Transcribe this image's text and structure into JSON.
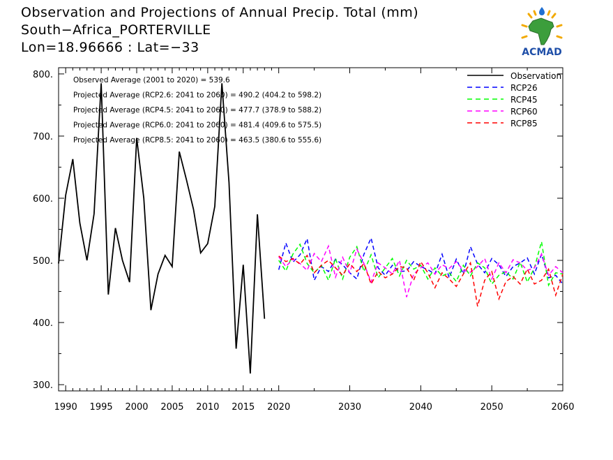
{
  "header": {
    "title_line1": "Observation and Projections of Annual Precip. Total (mm)",
    "title_line2": "South−Africa_PORTERVILLE",
    "title_line3": "Lon=18.96666 : Lat=−33"
  },
  "logo": {
    "text": "ACMAD",
    "icon": "africa-map-sun-icon"
  },
  "chart_data": {
    "type": "line",
    "title": "Observation and Projections of Annual Precip. Total (mm)",
    "xlim": [
      1989,
      2060
    ],
    "ylim": [
      290,
      810
    ],
    "x_ticks": [
      1990,
      1995,
      2000,
      2005,
      2010,
      2015,
      2020,
      2030,
      2040,
      2050,
      2060
    ],
    "y_ticks": [
      300,
      400,
      500,
      600,
      700,
      800
    ],
    "y_tick_labels": [
      "300.",
      "400.",
      "500.",
      "600.",
      "700.",
      "800."
    ],
    "grid": false,
    "legend_position": "top-right",
    "annotations": [
      "Observed Average (2001 to 2020) = 539.6",
      "Projected Average (RCP2.6: 2041 to 2060) = 490.2 (404.2 to 598.2)",
      "Projected Average (RCP4.5: 2041 to 2060) = 477.7 (378.9 to 588.2)",
      "Projected Average (RCP6.0: 2041 to 2060) = 481.4 (409.6 to 575.5)",
      "Projected Average (RCP8.5: 2041 to 2060) = 463.5 (380.6 to 555.6)"
    ],
    "series": [
      {
        "name": "Observation",
        "color": "#000000",
        "dash": "solid",
        "x": [
          1989,
          1990,
          1991,
          1992,
          1993,
          1994,
          1995,
          1996,
          1997,
          1998,
          1999,
          2000,
          2001,
          2002,
          2003,
          2004,
          2005,
          2006,
          2007,
          2008,
          2009,
          2010,
          2011,
          2012,
          2013,
          2014,
          2015,
          2016,
          2017,
          2018,
          2019,
          2020
        ],
        "values": [
          495,
          605,
          663,
          560,
          500,
          575,
          785,
          445,
          552,
          500,
          465,
          697,
          600,
          420,
          478,
          508,
          490,
          675,
          630,
          582,
          512,
          527,
          587,
          785,
          625,
          358,
          493,
          318,
          574,
          406,
          null,
          null
        ]
      },
      {
        "name": "RCP26",
        "color": "#0000ff",
        "dash": "dashed",
        "x": [
          2020,
          2021,
          2022,
          2023,
          2024,
          2025,
          2026,
          2027,
          2028,
          2029,
          2030,
          2031,
          2032,
          2033,
          2034,
          2035,
          2036,
          2037,
          2038,
          2039,
          2040,
          2041,
          2042,
          2043,
          2044,
          2045,
          2046,
          2047,
          2048,
          2049,
          2050,
          2051,
          2052,
          2053,
          2054,
          2055,
          2056,
          2057,
          2058,
          2059,
          2060
        ],
        "values": [
          485,
          528,
          497,
          509,
          535,
          468,
          490,
          482,
          502,
          493,
          480,
          470,
          510,
          536,
          488,
          476,
          492,
          482,
          483,
          498,
          490,
          485,
          478,
          510,
          472,
          502,
          478,
          522,
          494,
          480,
          503,
          493,
          474,
          490,
          496,
          504,
          478,
          510,
          472,
          476,
          462
        ]
      },
      {
        "name": "RCP45",
        "color": "#00ff00",
        "dash": "dashed",
        "x": [
          2020,
          2021,
          2022,
          2023,
          2024,
          2025,
          2026,
          2027,
          2028,
          2029,
          2030,
          2031,
          2032,
          2033,
          2034,
          2035,
          2036,
          2037,
          2038,
          2039,
          2040,
          2041,
          2042,
          2043,
          2044,
          2045,
          2046,
          2047,
          2048,
          2049,
          2050,
          2051,
          2052,
          2053,
          2054,
          2055,
          2056,
          2057,
          2058,
          2059,
          2060
        ],
        "values": [
          500,
          483,
          510,
          526,
          495,
          480,
          492,
          468,
          503,
          470,
          505,
          522,
          482,
          509,
          472,
          488,
          503,
          475,
          500,
          486,
          492,
          470,
          488,
          475,
          480,
          466,
          492,
          475,
          496,
          488,
          462,
          476,
          482,
          470,
          497,
          465,
          488,
          530,
          460,
          480,
          478
        ]
      },
      {
        "name": "RCP60",
        "color": "#ff00ff",
        "dash": "dashed",
        "x": [
          2020,
          2021,
          2022,
          2023,
          2024,
          2025,
          2026,
          2027,
          2028,
          2029,
          2030,
          2031,
          2032,
          2033,
          2034,
          2035,
          2036,
          2037,
          2038,
          2039,
          2040,
          2041,
          2042,
          2043,
          2044,
          2045,
          2046,
          2047,
          2048,
          2049,
          2050,
          2051,
          2052,
          2053,
          2054,
          2055,
          2056,
          2057,
          2058,
          2059,
          2060
        ],
        "values": [
          506,
          490,
          502,
          495,
          484,
          511,
          498,
          523,
          473,
          505,
          480,
          518,
          495,
          465,
          496,
          488,
          478,
          500,
          441,
          478,
          488,
          496,
          478,
          493,
          487,
          498,
          484,
          481,
          490,
          503,
          470,
          496,
          480,
          501,
          496,
          484,
          488,
          510,
          476,
          490,
          480
        ]
      },
      {
        "name": "RCP85",
        "color": "#ff0000",
        "dash": "dashed",
        "x": [
          2020,
          2021,
          2022,
          2023,
          2024,
          2025,
          2026,
          2027,
          2028,
          2029,
          2030,
          2031,
          2032,
          2033,
          2034,
          2035,
          2036,
          2037,
          2038,
          2039,
          2040,
          2041,
          2042,
          2043,
          2044,
          2045,
          2046,
          2047,
          2048,
          2049,
          2050,
          2051,
          2052,
          2053,
          2054,
          2055,
          2056,
          2057,
          2058,
          2059,
          2060
        ],
        "values": [
          507,
          498,
          503,
          494,
          508,
          480,
          492,
          500,
          488,
          476,
          495,
          482,
          495,
          462,
          482,
          472,
          478,
          490,
          488,
          468,
          498,
          480,
          456,
          480,
          470,
          458,
          478,
          496,
          426,
          468,
          482,
          438,
          466,
          474,
          462,
          486,
          462,
          468,
          486,
          444,
          478
        ]
      }
    ]
  }
}
